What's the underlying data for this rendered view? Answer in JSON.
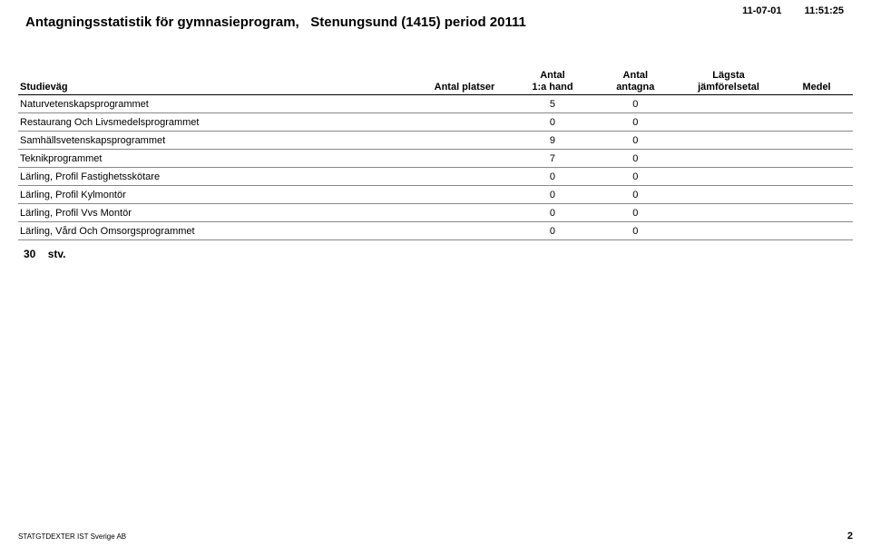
{
  "header": {
    "date": "11-07-01",
    "time": "11:51:25",
    "title_prefix": "Antagningsstatistik för gymnasieprogram,",
    "title_suffix": "Stenungsund (1415) period 20111"
  },
  "columns": {
    "studievag": "Studieväg",
    "antal_platser": "Antal platser",
    "antal_1a_hand_l1": "Antal",
    "antal_1a_hand_l2": "1:a hand",
    "antal_antagna_l1": "Antal",
    "antal_antagna_l2": "antagna",
    "lagsta_l1": "Lägsta",
    "lagsta_l2": "jämförelsetal",
    "medel": "Medel"
  },
  "rows": [
    {
      "name": "Naturvetenskapsprogrammet",
      "platser": "",
      "hand": "5",
      "antagna": "0",
      "jamf": "",
      "medel": ""
    },
    {
      "name": "Restaurang Och Livsmedelsprogrammet",
      "platser": "",
      "hand": "0",
      "antagna": "0",
      "jamf": "",
      "medel": ""
    },
    {
      "name": "Samhällsvetenskapsprogrammet",
      "platser": "",
      "hand": "9",
      "antagna": "0",
      "jamf": "",
      "medel": ""
    },
    {
      "name": "Teknikprogrammet",
      "platser": "",
      "hand": "7",
      "antagna": "0",
      "jamf": "",
      "medel": ""
    },
    {
      "name": "Lärling, Profil Fastighetsskötare",
      "platser": "",
      "hand": "0",
      "antagna": "0",
      "jamf": "",
      "medel": ""
    },
    {
      "name": "Lärling, Profil Kylmontör",
      "platser": "",
      "hand": "0",
      "antagna": "0",
      "jamf": "",
      "medel": ""
    },
    {
      "name": "Lärling, Profil Vvs Montör",
      "platser": "",
      "hand": "0",
      "antagna": "0",
      "jamf": "",
      "medel": ""
    },
    {
      "name": "Lärling, Vård Och Omsorgsprogrammet",
      "platser": "",
      "hand": "0",
      "antagna": "0",
      "jamf": "",
      "medel": ""
    }
  ],
  "summary": {
    "count": "30",
    "unit": "stv."
  },
  "footer": {
    "source": "STATGTDEXTER  IST Sverige AB",
    "page_number": "2"
  }
}
